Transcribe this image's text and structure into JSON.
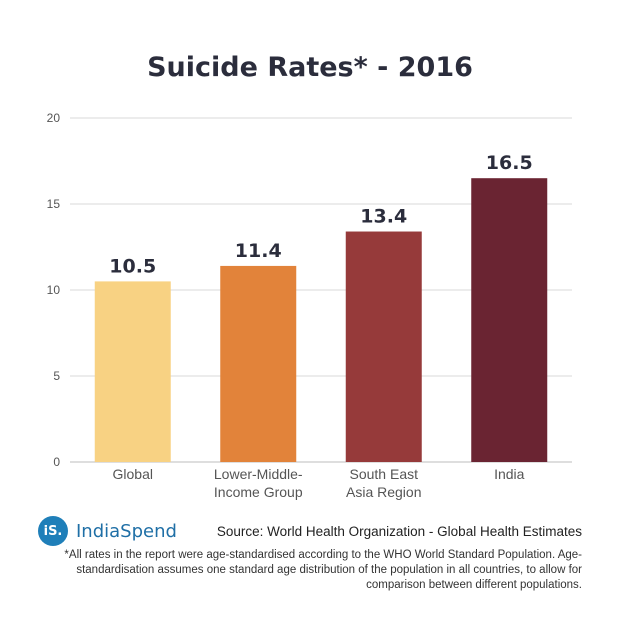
{
  "chart_data": {
    "type": "bar",
    "title": "Suicide Rates* - 2016",
    "categories": [
      [
        "Global"
      ],
      [
        "Lower-Middle-",
        "Income Group"
      ],
      [
        "South East",
        "Asia Region"
      ],
      [
        "India"
      ]
    ],
    "values": [
      10.5,
      11.4,
      13.4,
      16.5
    ],
    "value_labels": [
      "10.5",
      "11.4",
      "13.4",
      "16.5"
    ],
    "bar_colors": [
      "#f8d283",
      "#e2833a",
      "#963a3a",
      "#6a2432"
    ],
    "ylim": [
      0,
      20
    ],
    "yticks": [
      0,
      5,
      10,
      15,
      20
    ],
    "grid": true,
    "xlabel": "",
    "ylabel": ""
  },
  "footer": {
    "logo_badge": "iS.",
    "logo_name": "IndiaSpend",
    "source": "Source: World Health Organization - Global Health Estimates",
    "footnote": "*All rates in the report were age-standardised according to the WHO World Standard Population. Age-standardisation assumes one standard age distribution of the population in all countries, to allow for comparison between different populations."
  },
  "colors": {
    "title": "#2b2d3c",
    "grid": "#d9d9d9",
    "axis_text": "#555555",
    "brand": "#1f7fb9"
  }
}
